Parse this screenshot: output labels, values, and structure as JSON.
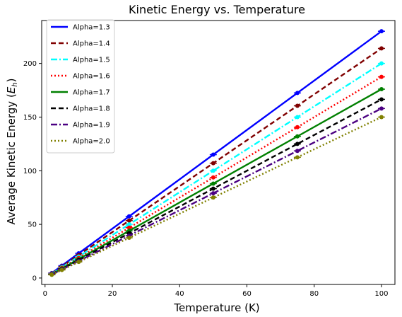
{
  "chart_data": {
    "type": "line",
    "title": "Kinetic Energy vs. Temperature",
    "xlabel": "Temperature (K)",
    "ylabel_main": "Average Kinetic Energy (",
    "ylabel_sym": "E",
    "ylabel_sub": "h",
    "ylabel_end": ")",
    "xlim": [
      -1,
      104
    ],
    "ylim": [
      -6,
      240
    ],
    "xticks": [
      0,
      20,
      40,
      60,
      80,
      100
    ],
    "yticks": [
      0,
      50,
      100,
      150,
      200
    ],
    "grid": false,
    "legend_position": "top-left",
    "x": [
      2,
      5,
      10,
      25,
      50,
      75,
      100
    ],
    "series": [
      {
        "name": "Alpha=1.3",
        "color": "#0000ff",
        "dash": "solid",
        "values": [
          4.6,
          11.5,
          23,
          57.5,
          115,
          172.5,
          230
        ]
      },
      {
        "name": "Alpha=1.4",
        "color": "#800000",
        "dash": "dashed",
        "values": [
          4.3,
          10.7,
          21.4,
          53.5,
          107,
          160.5,
          214
        ]
      },
      {
        "name": "Alpha=1.5",
        "color": "#00ffff",
        "dash": "dashdot",
        "values": [
          4.0,
          10.0,
          20,
          50,
          100,
          150,
          200
        ]
      },
      {
        "name": "Alpha=1.6",
        "color": "#ff0000",
        "dash": "dotted",
        "values": [
          3.75,
          9.4,
          18.75,
          46.9,
          93.75,
          140.6,
          187.5
        ]
      },
      {
        "name": "Alpha=1.7",
        "color": "#008000",
        "dash": "solid",
        "values": [
          3.5,
          8.8,
          17.6,
          44,
          88,
          132,
          176
        ]
      },
      {
        "name": "Alpha=1.8",
        "color": "#000000",
        "dash": "dashed",
        "values": [
          3.3,
          8.3,
          16.7,
          41.7,
          83.3,
          125,
          166.5
        ]
      },
      {
        "name": "Alpha=1.9",
        "color": "#4b0082",
        "dash": "dashdot",
        "values": [
          3.2,
          7.9,
          15.8,
          39.5,
          79,
          118.5,
          158
        ]
      },
      {
        "name": "Alpha=2.0",
        "color": "#808000",
        "dash": "dotted",
        "values": [
          3.0,
          7.5,
          15,
          37.5,
          75,
          112.5,
          150
        ]
      }
    ]
  }
}
